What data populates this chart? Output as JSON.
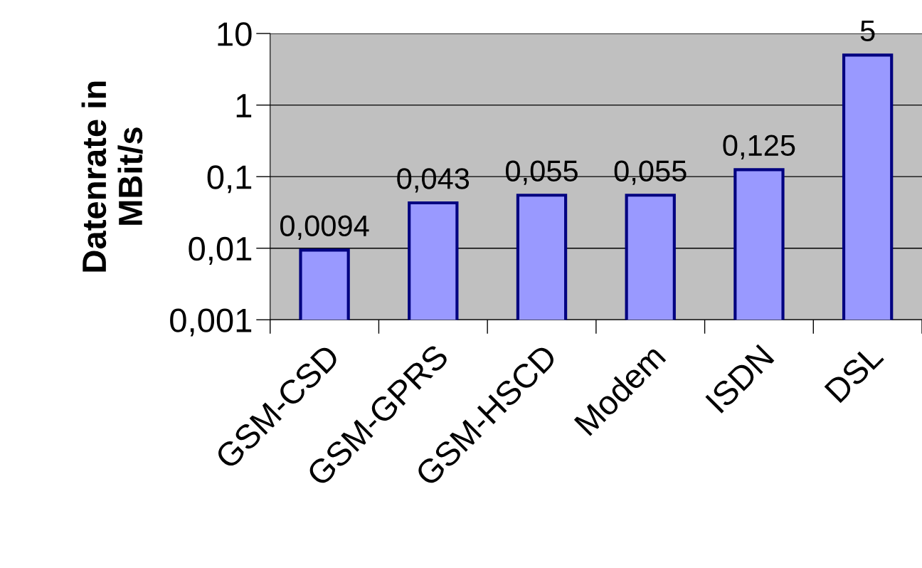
{
  "chart_data": {
    "type": "bar",
    "ylabel": "Datenrate in\nMBit/s",
    "categories": [
      "GSM-CSD",
      "GSM-GPRS",
      "GSM-HSCD",
      "Modem",
      "ISDN",
      "DSL"
    ],
    "values": [
      0.0094,
      0.043,
      0.055,
      0.055,
      0.125,
      5
    ],
    "value_labels": [
      "0,0094",
      "0,043",
      "0,055",
      "0,055",
      "0,125",
      "5"
    ],
    "color": "#9999ff",
    "log": "y",
    "ylim": [
      0.001,
      10
    ],
    "yticks": [
      {
        "value": 0.001,
        "label": "0,001"
      },
      {
        "value": 0.01,
        "label": "0,01"
      },
      {
        "value": 0.1,
        "label": "0,1"
      },
      1,
      10
    ],
    "grid": "y"
  }
}
